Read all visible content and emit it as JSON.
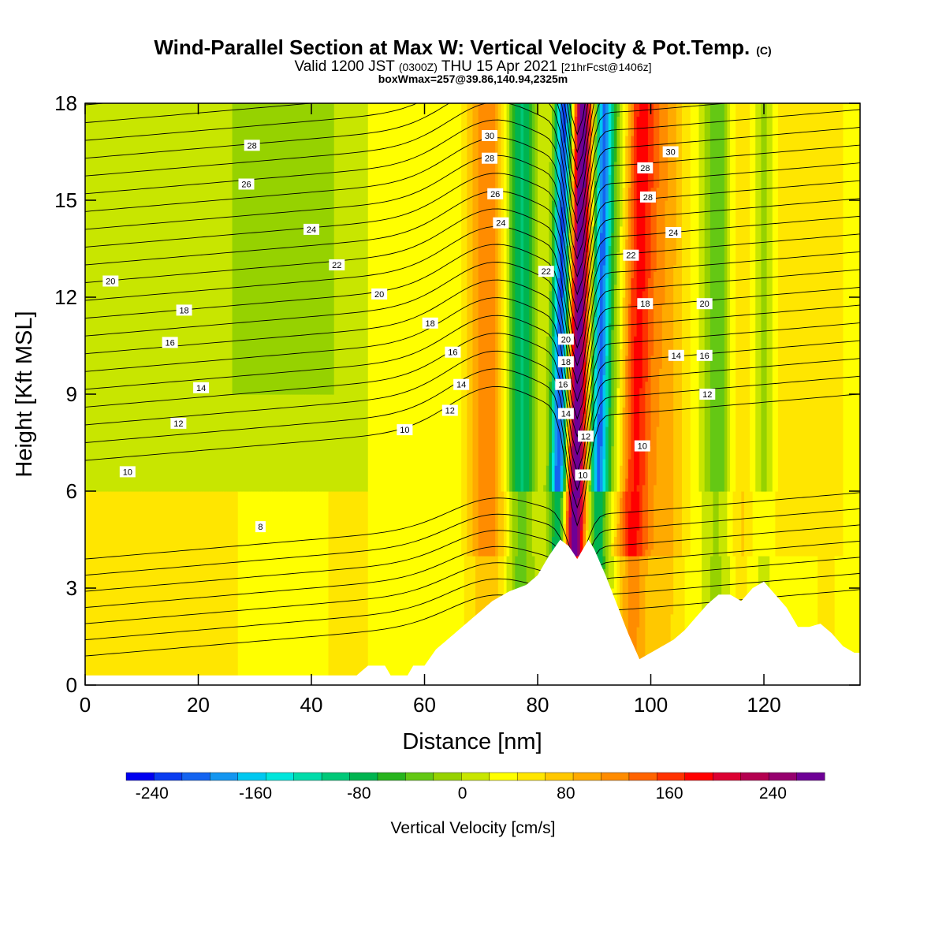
{
  "header": {
    "title": "Wind-Parallel Section at Max W: Vertical Velocity & Pot.Temp.",
    "title_mark": "(C)",
    "valid_a": "Valid 1200 JST",
    "valid_b": "(0300Z)",
    "valid_c": "THU 15 Apr 2021",
    "valid_d": "[21hrFcst@1406z]",
    "boxline": "boxWmax=257@39.86,140.94,2325m"
  },
  "chart_data": {
    "type": "heatmap",
    "xlabel": "Distance [nm]",
    "ylabel": "Height [Kft MSL]",
    "xlim": [
      0,
      137
    ],
    "ylim": [
      0,
      18
    ],
    "x_ticks": [
      "0",
      "20",
      "40",
      "60",
      "80",
      "100",
      "120"
    ],
    "y_ticks": [
      "0",
      "3",
      "6",
      "9",
      "12",
      "15",
      "18"
    ],
    "colorbar": {
      "label": "Vertical Velocity [cm/s]",
      "ticks": [
        "-240",
        "-160",
        "-80",
        "0",
        "80",
        "160",
        "240"
      ],
      "min": -260,
      "max": 280,
      "step": 20,
      "colors": [
        "#0000f0",
        "#0a3cf0",
        "#1464f0",
        "#1496f0",
        "#00c8f0",
        "#00e6dc",
        "#00dcaa",
        "#00c878",
        "#00b450",
        "#28b41e",
        "#64c814",
        "#96d200",
        "#c8e600",
        "#ffff00",
        "#ffe600",
        "#ffc800",
        "#ffaa00",
        "#ff8c00",
        "#ff6400",
        "#ff3200",
        "#ff0000",
        "#dc0032",
        "#b40050",
        "#96006e",
        "#6e0096"
      ]
    },
    "updraft_cores": [
      {
        "x": 87,
        "w": 240
      },
      {
        "x": 97,
        "w": 150
      },
      {
        "x": 71,
        "w": 90
      },
      {
        "x": 103,
        "w": 60
      },
      {
        "x": 116,
        "w": 40
      },
      {
        "x": 123,
        "w": 30
      },
      {
        "x": 131,
        "w": 30
      }
    ],
    "downdraft_cores": [
      {
        "x": 84,
        "w": -240
      },
      {
        "x": 91,
        "w": -200
      },
      {
        "x": 77,
        "w": -110
      },
      {
        "x": 94,
        "w": -80
      },
      {
        "x": 112,
        "w": -70
      },
      {
        "x": 120,
        "w": -50
      },
      {
        "x": 35,
        "w": -40
      }
    ],
    "terrain": [
      [
        0,
        0.3
      ],
      [
        48,
        0.3
      ],
      [
        50,
        0.6
      ],
      [
        53,
        0.6
      ],
      [
        54,
        0.3
      ],
      [
        57,
        0.3
      ],
      [
        58,
        0.6
      ],
      [
        60,
        0.6
      ],
      [
        62,
        1.1
      ],
      [
        64,
        1.4
      ],
      [
        66,
        1.7
      ],
      [
        68,
        2.0
      ],
      [
        70,
        2.3
      ],
      [
        72,
        2.6
      ],
      [
        75,
        2.9
      ],
      [
        78,
        3.1
      ],
      [
        80,
        3.4
      ],
      [
        82,
        4.0
      ],
      [
        84,
        4.5
      ],
      [
        85.5,
        4.3
      ],
      [
        87,
        3.9
      ],
      [
        88,
        4.2
      ],
      [
        89,
        4.5
      ],
      [
        90,
        4.2
      ],
      [
        92,
        3.4
      ],
      [
        94,
        2.5
      ],
      [
        96,
        1.6
      ],
      [
        98,
        0.8
      ],
      [
        100,
        1.0
      ],
      [
        102,
        1.2
      ],
      [
        104,
        1.4
      ],
      [
        106,
        1.7
      ],
      [
        108,
        2.1
      ],
      [
        110,
        2.5
      ],
      [
        112,
        2.8
      ],
      [
        114,
        2.8
      ],
      [
        116,
        2.6
      ],
      [
        118,
        3.0
      ],
      [
        120,
        3.2
      ],
      [
        122,
        2.8
      ],
      [
        124,
        2.4
      ],
      [
        126,
        1.8
      ],
      [
        128,
        1.8
      ],
      [
        130,
        1.9
      ],
      [
        132,
        1.6
      ],
      [
        134,
        1.2
      ],
      [
        136,
        1.0
      ],
      [
        137,
        1.0
      ]
    ],
    "theta_labels": [
      {
        "text": "28",
        "x": 29.5,
        "y": 16.7
      },
      {
        "text": "26",
        "x": 28.5,
        "y": 15.5
      },
      {
        "text": "24",
        "x": 40.0,
        "y": 14.1
      },
      {
        "text": "22",
        "x": 44.5,
        "y": 13.0
      },
      {
        "text": "20",
        "x": 4.5,
        "y": 12.5
      },
      {
        "text": "20",
        "x": 52.0,
        "y": 12.1
      },
      {
        "text": "18",
        "x": 17.5,
        "y": 11.6
      },
      {
        "text": "18",
        "x": 61.0,
        "y": 11.2
      },
      {
        "text": "16",
        "x": 15.0,
        "y": 10.6
      },
      {
        "text": "16",
        "x": 65.0,
        "y": 10.3
      },
      {
        "text": "14",
        "x": 20.5,
        "y": 9.2
      },
      {
        "text": "14",
        "x": 66.5,
        "y": 9.3
      },
      {
        "text": "12",
        "x": 16.5,
        "y": 8.1
      },
      {
        "text": "12",
        "x": 64.5,
        "y": 8.5
      },
      {
        "text": "10",
        "x": 56.5,
        "y": 7.9
      },
      {
        "text": "10",
        "x": 7.5,
        "y": 6.6
      },
      {
        "text": "8",
        "x": 31.0,
        "y": 4.9
      },
      {
        "text": "30",
        "x": 71.5,
        "y": 17.0
      },
      {
        "text": "28",
        "x": 71.5,
        "y": 16.3
      },
      {
        "text": "26",
        "x": 72.5,
        "y": 15.2
      },
      {
        "text": "24",
        "x": 73.5,
        "y": 14.3
      },
      {
        "text": "22",
        "x": 81.5,
        "y": 12.8
      },
      {
        "text": "20",
        "x": 85.0,
        "y": 10.7
      },
      {
        "text": "18",
        "x": 85.0,
        "y": 10.0
      },
      {
        "text": "16",
        "x": 84.5,
        "y": 9.3
      },
      {
        "text": "14",
        "x": 85.0,
        "y": 8.4
      },
      {
        "text": "12",
        "x": 88.5,
        "y": 7.7
      },
      {
        "text": "10",
        "x": 88.0,
        "y": 6.5
      },
      {
        "text": "30",
        "x": 103.5,
        "y": 16.5
      },
      {
        "text": "28",
        "x": 99.0,
        "y": 16.0
      },
      {
        "text": "28",
        "x": 99.5,
        "y": 15.1
      },
      {
        "text": "24",
        "x": 104.0,
        "y": 14.0
      },
      {
        "text": "22",
        "x": 96.5,
        "y": 13.3
      },
      {
        "text": "20",
        "x": 109.5,
        "y": 11.8
      },
      {
        "text": "18",
        "x": 99.0,
        "y": 11.8
      },
      {
        "text": "16",
        "x": 109.5,
        "y": 10.2
      },
      {
        "text": "14",
        "x": 104.5,
        "y": 10.2
      },
      {
        "text": "12",
        "x": 110.0,
        "y": 9.0
      },
      {
        "text": "10",
        "x": 98.5,
        "y": 7.4
      }
    ]
  }
}
